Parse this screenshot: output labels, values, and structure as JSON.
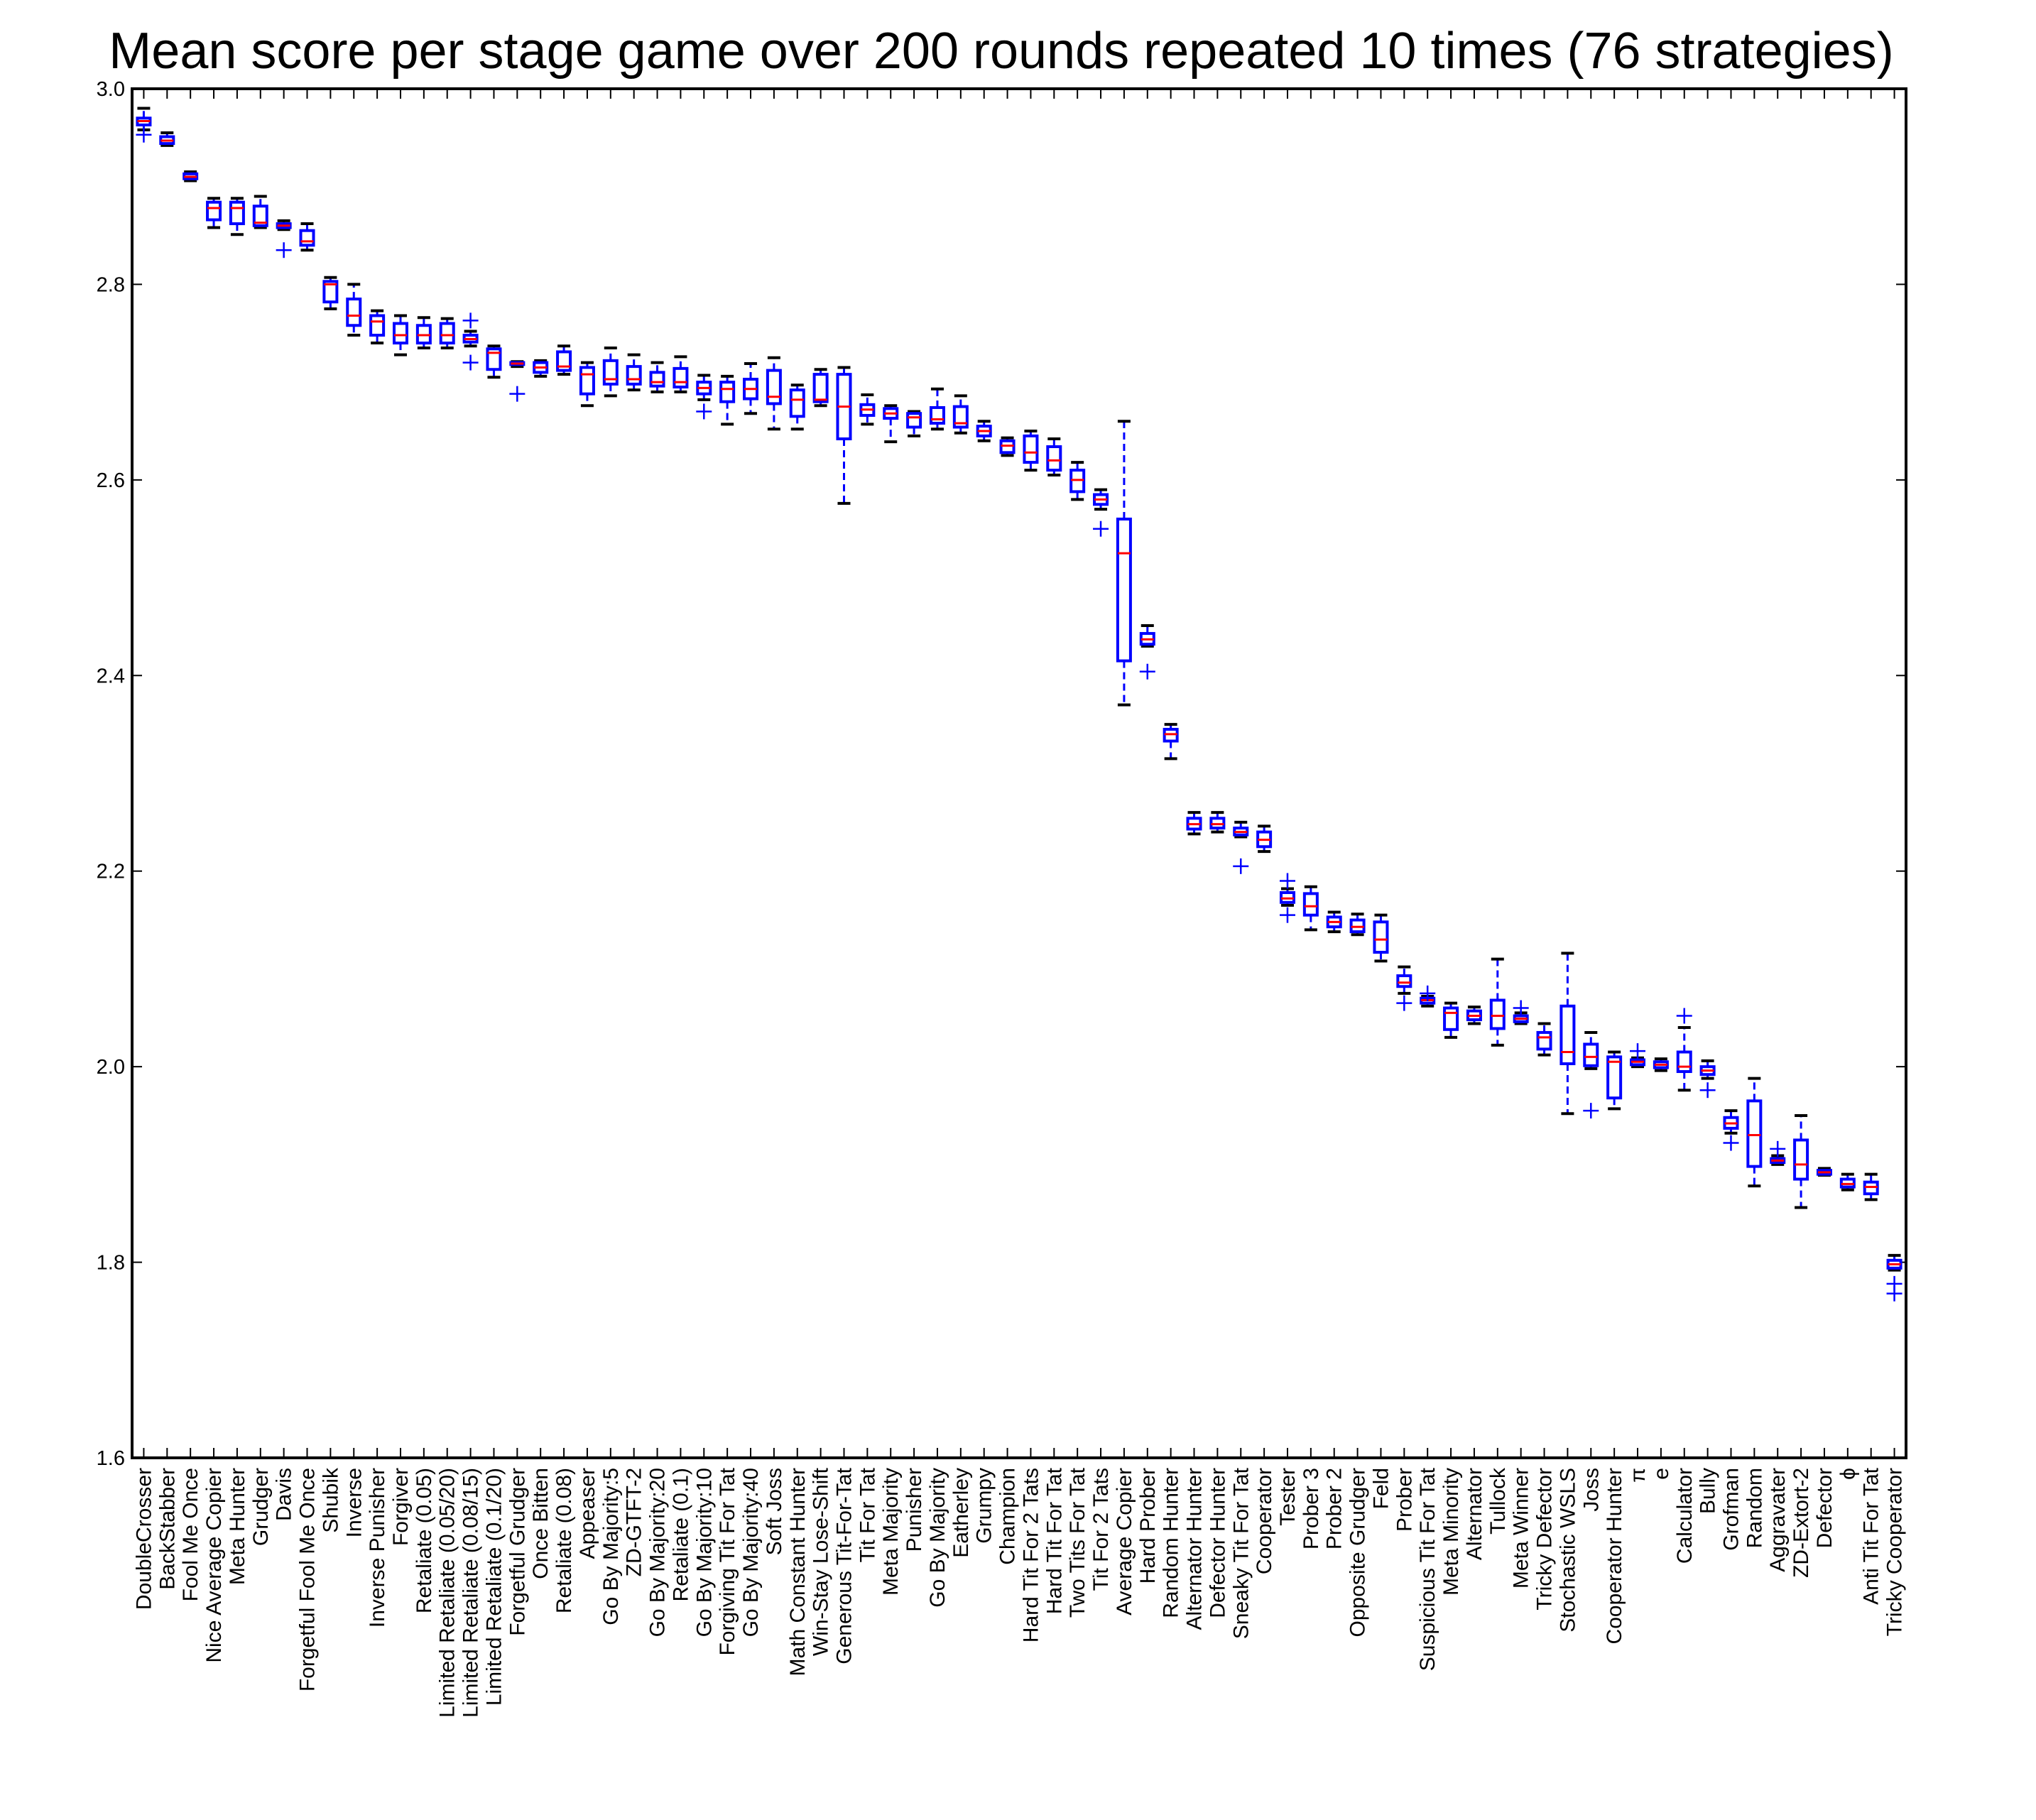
{
  "chart_data": {
    "type": "box",
    "title": "Mean score per stage game over 200 rounds repeated 10 times (76 strategies)",
    "xlabel": "",
    "ylabel": "",
    "ylim": [
      1.6,
      3.0
    ],
    "yticks": [
      "1.6",
      "1.8",
      "2.0",
      "2.2",
      "2.4",
      "2.6",
      "2.8",
      "3.0"
    ],
    "grid": false,
    "legend": "none",
    "colors": {
      "box": "#0000ff",
      "median": "#ff0000",
      "whisker_cap": "#000000",
      "outlier": "#0000ff"
    },
    "categories": [
      "DoubleCrosser",
      "BackStabber",
      "Fool Me Once",
      "Nice Average Copier",
      "Meta Hunter",
      "Grudger",
      "Davis",
      "Forgetful Fool Me Once",
      "Shubik",
      "Inverse",
      "Inverse Punisher",
      "Forgiver",
      "Retaliate (0.05)",
      "Limited Retaliate (0.05/20)",
      "Limited Retaliate (0.08/15)",
      "Limited Retaliate (0.1/20)",
      "Forgetful Grudger",
      "Once Bitten",
      "Retaliate (0.08)",
      "Appeaser",
      "Go By Majority:5",
      "ZD-GTFT-2",
      "Go By Majority:20",
      "Retaliate (0.1)",
      "Go By Majority:10",
      "Forgiving Tit For Tat",
      "Go By Majority:40",
      "Soft Joss",
      "Math Constant Hunter",
      "Win-Stay Lose-Shift",
      "Generous Tit-For-Tat",
      "Tit For Tat",
      "Meta Majority",
      "Punisher",
      "Go By Majority",
      "Eatherley",
      "Grumpy",
      "Champion",
      "Hard Tit For 2 Tats",
      "Hard Tit For Tat",
      "Two Tits For Tat",
      "Tit For 2 Tats",
      "Average Copier",
      "Hard Prober",
      "Random Hunter",
      "Alternator Hunter",
      "Defector Hunter",
      "Sneaky Tit For Tat",
      "Cooperator",
      "Tester",
      "Prober 3",
      "Prober 2",
      "Opposite Grudger",
      "Feld",
      "Prober",
      "Suspicious Tit For Tat",
      "Meta Minority",
      "Alternator",
      "Tullock",
      "Meta Winner",
      "Tricky Defector",
      "Stochastic WSLS",
      "Joss",
      "Cooperator Hunter",
      "π",
      "e",
      "Calculator",
      "Bully",
      "Grofman",
      "Random",
      "Aggravater",
      "ZD-Extort-2",
      "Defector",
      "ϕ",
      "Anti Tit For Tat",
      "Tricky Cooperator"
    ],
    "boxes": [
      {
        "min": 2.958,
        "q1": 2.963,
        "median": 2.967,
        "q3": 2.97,
        "max": 2.98,
        "outliers": [
          2.953
        ]
      },
      {
        "min": 2.942,
        "q1": 2.944,
        "median": 2.947,
        "q3": 2.951,
        "max": 2.955,
        "outliers": []
      },
      {
        "min": 2.906,
        "q1": 2.908,
        "median": 2.91,
        "q3": 2.913,
        "max": 2.915,
        "outliers": []
      },
      {
        "min": 2.858,
        "q1": 2.866,
        "median": 2.878,
        "q3": 2.884,
        "max": 2.888,
        "outliers": []
      },
      {
        "min": 2.851,
        "q1": 2.862,
        "median": 2.878,
        "q3": 2.884,
        "max": 2.888,
        "outliers": []
      },
      {
        "min": 2.858,
        "q1": 2.86,
        "median": 2.863,
        "q3": 2.88,
        "max": 2.89,
        "outliers": []
      },
      {
        "min": 2.856,
        "q1": 2.858,
        "median": 2.86,
        "q3": 2.862,
        "max": 2.865,
        "outliers": [
          2.835
        ]
      },
      {
        "min": 2.835,
        "q1": 2.84,
        "median": 2.844,
        "q3": 2.855,
        "max": 2.862,
        "outliers": []
      },
      {
        "min": 2.775,
        "q1": 2.782,
        "median": 2.8,
        "q3": 2.803,
        "max": 2.807,
        "outliers": []
      },
      {
        "min": 2.748,
        "q1": 2.758,
        "median": 2.768,
        "q3": 2.785,
        "max": 2.8,
        "outliers": []
      },
      {
        "min": 2.74,
        "q1": 2.748,
        "median": 2.762,
        "q3": 2.768,
        "max": 2.773,
        "outliers": []
      },
      {
        "min": 2.728,
        "q1": 2.74,
        "median": 2.748,
        "q3": 2.76,
        "max": 2.768,
        "outliers": []
      },
      {
        "min": 2.735,
        "q1": 2.74,
        "median": 2.748,
        "q3": 2.758,
        "max": 2.766,
        "outliers": []
      },
      {
        "min": 2.735,
        "q1": 2.74,
        "median": 2.748,
        "q3": 2.76,
        "max": 2.765,
        "outliers": []
      },
      {
        "min": 2.737,
        "q1": 2.741,
        "median": 2.744,
        "q3": 2.748,
        "max": 2.752,
        "outliers": [
          2.763,
          2.72
        ]
      },
      {
        "min": 2.705,
        "q1": 2.713,
        "median": 2.73,
        "q3": 2.734,
        "max": 2.737,
        "outliers": []
      },
      {
        "min": 2.716,
        "q1": 2.718,
        "median": 2.719,
        "q3": 2.72,
        "max": 2.721,
        "outliers": [
          2.688
        ]
      },
      {
        "min": 2.706,
        "q1": 2.71,
        "median": 2.715,
        "q3": 2.72,
        "max": 2.722,
        "outliers": []
      },
      {
        "min": 2.708,
        "q1": 2.712,
        "median": 2.716,
        "q3": 2.731,
        "max": 2.737,
        "outliers": []
      },
      {
        "min": 2.676,
        "q1": 2.688,
        "median": 2.708,
        "q3": 2.715,
        "max": 2.72,
        "outliers": []
      },
      {
        "min": 2.686,
        "q1": 2.698,
        "median": 2.703,
        "q3": 2.722,
        "max": 2.735,
        "outliers": []
      },
      {
        "min": 2.692,
        "q1": 2.698,
        "median": 2.703,
        "q3": 2.716,
        "max": 2.728,
        "outliers": []
      },
      {
        "min": 2.69,
        "q1": 2.696,
        "median": 2.7,
        "q3": 2.71,
        "max": 2.72,
        "outliers": []
      },
      {
        "min": 2.69,
        "q1": 2.695,
        "median": 2.7,
        "q3": 2.714,
        "max": 2.726,
        "outliers": []
      },
      {
        "min": 2.682,
        "q1": 2.688,
        "median": 2.694,
        "q3": 2.7,
        "max": 2.707,
        "outliers": [
          2.67
        ]
      },
      {
        "min": 2.657,
        "q1": 2.68,
        "median": 2.693,
        "q3": 2.7,
        "max": 2.706,
        "outliers": []
      },
      {
        "min": 2.668,
        "q1": 2.683,
        "median": 2.693,
        "q3": 2.703,
        "max": 2.719,
        "outliers": []
      },
      {
        "min": 2.652,
        "q1": 2.678,
        "median": 2.685,
        "q3": 2.712,
        "max": 2.725,
        "outliers": []
      },
      {
        "min": 2.652,
        "q1": 2.665,
        "median": 2.682,
        "q3": 2.692,
        "max": 2.697,
        "outliers": []
      },
      {
        "min": 2.676,
        "q1": 2.68,
        "median": 2.682,
        "q3": 2.708,
        "max": 2.713,
        "outliers": []
      },
      {
        "min": 2.576,
        "q1": 2.642,
        "median": 2.675,
        "q3": 2.708,
        "max": 2.715,
        "outliers": []
      },
      {
        "min": 2.657,
        "q1": 2.666,
        "median": 2.672,
        "q3": 2.677,
        "max": 2.687,
        "outliers": []
      },
      {
        "min": 2.639,
        "q1": 2.663,
        "median": 2.668,
        "q3": 2.673,
        "max": 2.676,
        "outliers": []
      },
      {
        "min": 2.645,
        "q1": 2.654,
        "median": 2.664,
        "q3": 2.668,
        "max": 2.67,
        "outliers": []
      },
      {
        "min": 2.652,
        "q1": 2.658,
        "median": 2.662,
        "q3": 2.674,
        "max": 2.693,
        "outliers": []
      },
      {
        "min": 2.648,
        "q1": 2.654,
        "median": 2.658,
        "q3": 2.675,
        "max": 2.686,
        "outliers": []
      },
      {
        "min": 2.64,
        "q1": 2.645,
        "median": 2.65,
        "q3": 2.655,
        "max": 2.66,
        "outliers": []
      },
      {
        "min": 2.625,
        "q1": 2.628,
        "median": 2.635,
        "q3": 2.64,
        "max": 2.643,
        "outliers": []
      },
      {
        "min": 2.61,
        "q1": 2.618,
        "median": 2.628,
        "q3": 2.645,
        "max": 2.65,
        "outliers": []
      },
      {
        "min": 2.605,
        "q1": 2.61,
        "median": 2.62,
        "q3": 2.634,
        "max": 2.642,
        "outliers": []
      },
      {
        "min": 2.58,
        "q1": 2.588,
        "median": 2.6,
        "q3": 2.61,
        "max": 2.618,
        "outliers": []
      },
      {
        "min": 2.57,
        "q1": 2.575,
        "median": 2.58,
        "q3": 2.585,
        "max": 2.59,
        "outliers": [
          2.55
        ]
      },
      {
        "min": 2.37,
        "q1": 2.415,
        "median": 2.525,
        "q3": 2.56,
        "max": 2.66,
        "outliers": []
      },
      {
        "min": 2.43,
        "q1": 2.432,
        "median": 2.437,
        "q3": 2.443,
        "max": 2.451,
        "outliers": [
          2.404
        ]
      },
      {
        "min": 2.315,
        "q1": 2.333,
        "median": 2.34,
        "q3": 2.345,
        "max": 2.35,
        "outliers": []
      },
      {
        "min": 2.238,
        "q1": 2.243,
        "median": 2.248,
        "q3": 2.254,
        "max": 2.26,
        "outliers": []
      },
      {
        "min": 2.24,
        "q1": 2.244,
        "median": 2.248,
        "q3": 2.254,
        "max": 2.26,
        "outliers": []
      },
      {
        "min": 2.235,
        "q1": 2.237,
        "median": 2.24,
        "q3": 2.244,
        "max": 2.25,
        "outliers": [
          2.205
        ]
      },
      {
        "min": 2.22,
        "q1": 2.225,
        "median": 2.232,
        "q3": 2.24,
        "max": 2.246,
        "outliers": []
      },
      {
        "min": 2.165,
        "q1": 2.168,
        "median": 2.172,
        "q3": 2.178,
        "max": 2.182,
        "outliers": [
          2.19,
          2.155
        ]
      },
      {
        "min": 2.14,
        "q1": 2.155,
        "median": 2.164,
        "q3": 2.177,
        "max": 2.184,
        "outliers": []
      },
      {
        "min": 2.138,
        "q1": 2.143,
        "median": 2.148,
        "q3": 2.153,
        "max": 2.158,
        "outliers": []
      },
      {
        "min": 2.135,
        "q1": 2.138,
        "median": 2.143,
        "q3": 2.15,
        "max": 2.156,
        "outliers": []
      },
      {
        "min": 2.108,
        "q1": 2.117,
        "median": 2.13,
        "q3": 2.148,
        "max": 2.155,
        "outliers": []
      },
      {
        "min": 2.075,
        "q1": 2.082,
        "median": 2.086,
        "q3": 2.093,
        "max": 2.102,
        "outliers": [
          2.065
        ]
      },
      {
        "min": 2.062,
        "q1": 2.065,
        "median": 2.068,
        "q3": 2.07,
        "max": 2.072,
        "outliers": [
          2.075
        ]
      },
      {
        "min": 2.03,
        "q1": 2.038,
        "median": 2.055,
        "q3": 2.06,
        "max": 2.065,
        "outliers": []
      },
      {
        "min": 2.044,
        "q1": 2.048,
        "median": 2.052,
        "q3": 2.057,
        "max": 2.061,
        "outliers": []
      },
      {
        "min": 2.022,
        "q1": 2.039,
        "median": 2.052,
        "q3": 2.068,
        "max": 2.11,
        "outliers": []
      },
      {
        "min": 2.044,
        "q1": 2.046,
        "median": 2.049,
        "q3": 2.052,
        "max": 2.055,
        "outliers": [
          2.06
        ]
      },
      {
        "min": 2.012,
        "q1": 2.018,
        "median": 2.03,
        "q3": 2.035,
        "max": 2.044,
        "outliers": []
      },
      {
        "min": 1.952,
        "q1": 2.003,
        "median": 2.015,
        "q3": 2.062,
        "max": 2.116,
        "outliers": []
      },
      {
        "min": 1.998,
        "q1": 2.001,
        "median": 2.01,
        "q3": 2.023,
        "max": 2.035,
        "outliers": [
          1.955
        ]
      },
      {
        "min": 1.957,
        "q1": 1.968,
        "median": 2.005,
        "q3": 2.01,
        "max": 2.015,
        "outliers": []
      },
      {
        "min": 2.0,
        "q1": 2.002,
        "median": 2.005,
        "q3": 2.007,
        "max": 2.009,
        "outliers": [
          2.016
        ]
      },
      {
        "min": 1.996,
        "q1": 1.999,
        "median": 2.002,
        "q3": 2.005,
        "max": 2.008,
        "outliers": []
      },
      {
        "min": 1.976,
        "q1": 1.995,
        "median": 2.0,
        "q3": 2.015,
        "max": 2.04,
        "outliers": [
          2.052
        ]
      },
      {
        "min": 1.988,
        "q1": 1.992,
        "median": 1.996,
        "q3": 2.0,
        "max": 2.006,
        "outliers": [
          1.976
        ]
      },
      {
        "min": 1.932,
        "q1": 1.937,
        "median": 1.942,
        "q3": 1.948,
        "max": 1.955,
        "outliers": [
          1.922
        ]
      },
      {
        "min": 1.878,
        "q1": 1.898,
        "median": 1.93,
        "q3": 1.965,
        "max": 1.988,
        "outliers": []
      },
      {
        "min": 1.9,
        "q1": 1.902,
        "median": 1.904,
        "q3": 1.906,
        "max": 1.909,
        "outliers": [
          1.916
        ]
      },
      {
        "min": 1.856,
        "q1": 1.885,
        "median": 1.9,
        "q3": 1.925,
        "max": 1.95,
        "outliers": []
      },
      {
        "min": 1.889,
        "q1": 1.89,
        "median": 1.892,
        "q3": 1.894,
        "max": 1.896,
        "outliers": []
      },
      {
        "min": 1.874,
        "q1": 1.877,
        "median": 1.88,
        "q3": 1.885,
        "max": 1.89,
        "outliers": []
      },
      {
        "min": 1.864,
        "q1": 1.87,
        "median": 1.877,
        "q3": 1.882,
        "max": 1.89,
        "outliers": []
      },
      {
        "min": 1.792,
        "q1": 1.794,
        "median": 1.798,
        "q3": 1.802,
        "max": 1.807,
        "outliers": [
          1.778,
          1.768
        ]
      }
    ]
  }
}
